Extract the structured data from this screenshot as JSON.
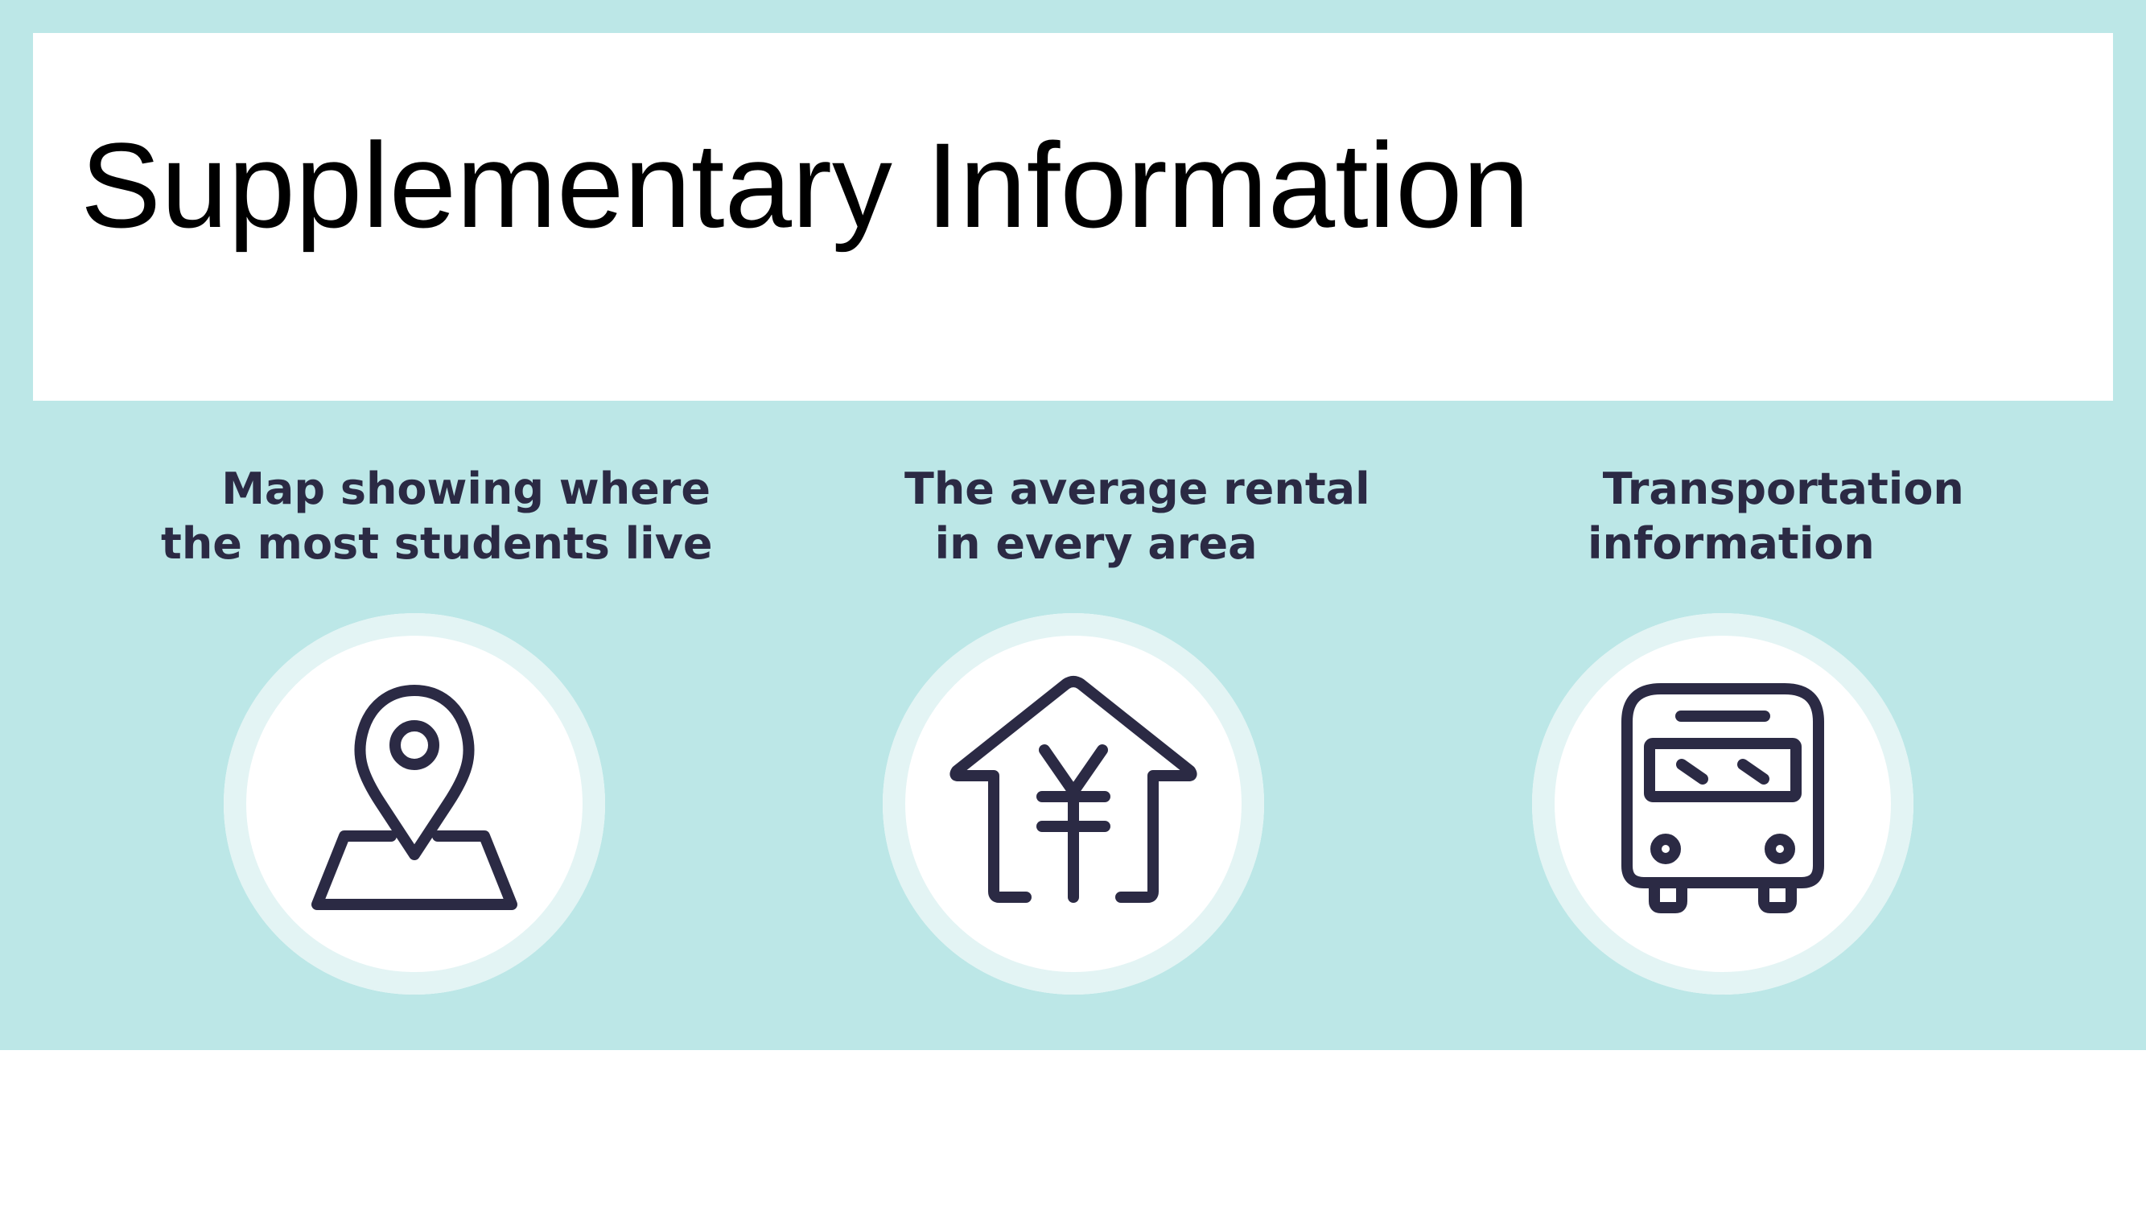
{
  "slide": {
    "title": "Supplementary Information",
    "colors": {
      "band": "#bce7e7",
      "ring": "#e3f4f4",
      "icon": "#2b2a44",
      "title": "#000000"
    },
    "items": [
      {
        "caption": "    Map showing where\nthe most students live",
        "icon": "map-pin-icon"
      },
      {
        "caption": "The average rental\n  in every area",
        "icon": "house-yen-icon"
      },
      {
        "caption": " Transportation\ninformation",
        "icon": "bus-icon"
      }
    ]
  }
}
